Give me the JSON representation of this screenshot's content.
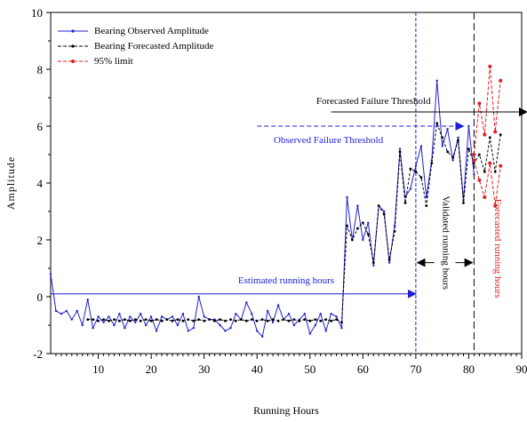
{
  "chart_data": {
    "type": "line",
    "xlabel": "Running Hours",
    "ylabel": "Amplitude",
    "xlim": [
      1,
      90
    ],
    "ylim": [
      -2,
      10
    ],
    "xticks": [
      10,
      20,
      30,
      40,
      50,
      60,
      70,
      80,
      90
    ],
    "yticks": [
      -2,
      0,
      2,
      4,
      6,
      8,
      10
    ],
    "legend": {
      "placement": "top-left"
    },
    "colors": {
      "observed": "#1f1fd6",
      "forecasted": "#000000",
      "limit": "#e02020",
      "annotation_blue": "#1f1fd6",
      "annotation_red": "#e02020"
    },
    "series": [
      {
        "name": "Bearing Observed Amplitude",
        "style": "solid line with small markers",
        "x": [
          1,
          2,
          3,
          4,
          5,
          6,
          7,
          8,
          9,
          10,
          11,
          12,
          13,
          14,
          15,
          16,
          17,
          18,
          19,
          20,
          21,
          22,
          23,
          24,
          25,
          26,
          27,
          28,
          29,
          30,
          31,
          32,
          33,
          34,
          35,
          36,
          37,
          38,
          39,
          40,
          41,
          42,
          43,
          44,
          45,
          46,
          47,
          48,
          49,
          50,
          51,
          52,
          53,
          54,
          55,
          56,
          57,
          58,
          59,
          60,
          61,
          62,
          63,
          64,
          65,
          66,
          67,
          68,
          69,
          70,
          71,
          72,
          73,
          74,
          75,
          76,
          77,
          78,
          79,
          80,
          81
        ],
        "values": [
          0.8,
          -0.5,
          -0.6,
          -0.5,
          -0.8,
          -0.5,
          -1.0,
          -0.1,
          -1.1,
          -0.7,
          -0.9,
          -0.7,
          -1.0,
          -0.6,
          -1.1,
          -0.7,
          -0.9,
          -0.6,
          -1.0,
          -0.7,
          -1.2,
          -0.7,
          -0.8,
          -0.7,
          -1.0,
          -0.6,
          -1.2,
          -1.1,
          0.0,
          -0.7,
          -0.8,
          -0.8,
          -1.0,
          -1.2,
          -1.1,
          -0.6,
          -0.8,
          -0.2,
          -0.6,
          -1.2,
          -1.4,
          -0.5,
          -0.9,
          -0.3,
          -0.8,
          -0.6,
          -1.0,
          -0.8,
          -0.6,
          -1.3,
          -1.0,
          -0.6,
          -1.2,
          -0.6,
          -0.7,
          -1.1,
          3.5,
          2.0,
          3.2,
          2.0,
          2.6,
          1.1,
          3.2,
          3.0,
          1.2,
          2.5,
          5.2,
          3.5,
          3.8,
          4.6,
          5.3,
          3.5,
          4.8,
          7.6,
          5.3,
          5.9,
          4.8,
          5.6,
          3.4,
          6.0,
          4.3
        ]
      },
      {
        "name": "Bearing Forecasted Amplitude",
        "style": "dashed line with small markers",
        "x": [
          1,
          2,
          3,
          4,
          5,
          6,
          7,
          8,
          9,
          10,
          11,
          12,
          13,
          14,
          15,
          16,
          17,
          18,
          19,
          20,
          21,
          22,
          23,
          24,
          25,
          26,
          27,
          28,
          29,
          30,
          31,
          32,
          33,
          34,
          35,
          36,
          37,
          38,
          39,
          40,
          41,
          42,
          43,
          44,
          45,
          46,
          47,
          48,
          49,
          50,
          51,
          52,
          53,
          54,
          55,
          56,
          57,
          58,
          59,
          60,
          61,
          62,
          63,
          64,
          65,
          66,
          67,
          68,
          69,
          70,
          71,
          72,
          73,
          74,
          75,
          76,
          77,
          78,
          79,
          80,
          81,
          82,
          83,
          84,
          85,
          86
        ],
        "values": [
          null,
          null,
          null,
          null,
          null,
          null,
          null,
          -0.8,
          -0.8,
          -0.85,
          -0.8,
          -0.85,
          -0.8,
          -0.85,
          -0.8,
          -0.85,
          -0.8,
          -0.85,
          -0.8,
          -0.85,
          -0.8,
          -0.85,
          -0.8,
          -0.85,
          -0.8,
          -0.85,
          -0.8,
          -0.85,
          -0.8,
          -0.85,
          -0.8,
          -0.85,
          -0.8,
          -0.85,
          -0.8,
          -0.85,
          -0.8,
          -0.85,
          -0.8,
          -0.85,
          -0.8,
          -0.85,
          -0.8,
          -0.85,
          -0.8,
          -0.85,
          -0.8,
          -0.85,
          -0.8,
          -0.85,
          -0.8,
          -0.85,
          -0.8,
          -0.85,
          -0.8,
          -0.9,
          2.5,
          2.0,
          2.4,
          2.6,
          2.2,
          1.2,
          3.2,
          2.9,
          1.3,
          2.3,
          5.1,
          3.3,
          4.5,
          4.4,
          4.2,
          3.2,
          4.7,
          6.1,
          5.6,
          5.1,
          4.9,
          5.5,
          3.3,
          5.2,
          4.7,
          5.0,
          4.4,
          5.6,
          4.4,
          5.7
        ]
      },
      {
        "name": "95% limit",
        "style": "dashed red with dot markers",
        "x": [
          81,
          82,
          83,
          84,
          85,
          86
        ],
        "upper": [
          5.0,
          6.8,
          5.7,
          8.1,
          5.8,
          7.6
        ],
        "lower": [
          4.8,
          4.1,
          3.5,
          4.7,
          3.2,
          4.6
        ]
      }
    ],
    "annotations": [
      {
        "text": "Forecasted Failure Threshold",
        "color": "black",
        "y": 6.5,
        "x_from": 54,
        "x_to": 91
      },
      {
        "text": "Observed Failure Threshold",
        "color": "blue",
        "y": 6.0,
        "x_from": 40,
        "x_to": 79
      },
      {
        "text": "Estimated running hours",
        "color": "blue",
        "y": 0.1,
        "x_from": 1,
        "x_to": 70
      },
      {
        "text": "Validated running hours",
        "color": "black",
        "x": 70.5,
        "x_from": 70,
        "x_to": 81
      },
      {
        "text": "Forecasted running hours",
        "color": "red",
        "x": 85
      }
    ],
    "vlines": [
      {
        "x": 70,
        "color": "blue",
        "dash": "dashed"
      },
      {
        "x": 81,
        "color": "black",
        "dash": "dashed"
      }
    ]
  }
}
